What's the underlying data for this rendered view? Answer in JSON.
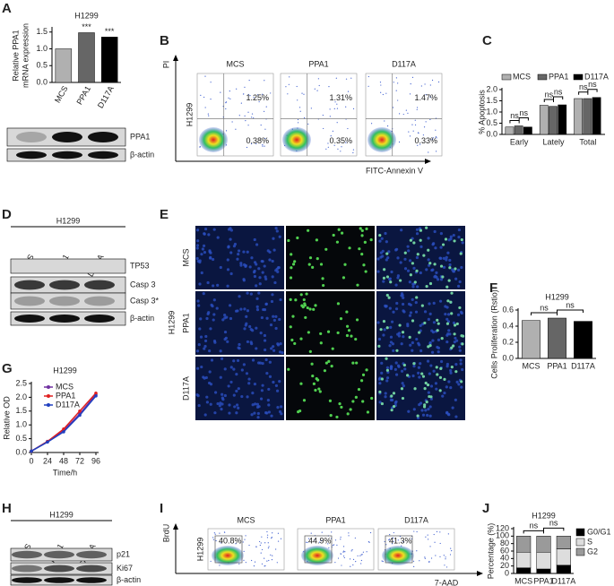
{
  "panel_letters": [
    "A",
    "B",
    "C",
    "D",
    "E",
    "F",
    "G",
    "H",
    "I",
    "J"
  ],
  "chart_data": [
    {
      "type": "bar",
      "title": "H1299",
      "ylabel": [
        "Relative PPA1",
        "mRNA expression"
      ],
      "categories": [
        "MCS",
        "PPA1",
        "D117A"
      ],
      "values": [
        1.0,
        1.48,
        1.35
      ],
      "colors": [
        "#b0b0b0",
        "#666666",
        "#000000"
      ],
      "ylim": [
        0,
        1.6
      ],
      "yticks": [
        {
          "value": 0,
          "label": "0.0"
        },
        {
          "value": 0.5,
          "label": "0.5"
        },
        {
          "value": 1,
          "label": "1.0"
        },
        {
          "value": 1.5,
          "label": "1.5"
        }
      ],
      "annotations": [
        "***",
        "***"
      ]
    },
    {
      "type": "bar",
      "ylabel": "% Apoptosis",
      "categories": [
        "Early",
        "Lately",
        "Total"
      ],
      "series": [
        {
          "name": "MCS",
          "color": "#b0b0b0",
          "values": [
            0.33,
            1.3,
            1.6
          ]
        },
        {
          "name": "PPA1",
          "color": "#666666",
          "values": [
            0.38,
            1.25,
            1.6
          ]
        },
        {
          "name": "D117A",
          "color": "#000000",
          "values": [
            0.33,
            1.32,
            1.65
          ]
        }
      ],
      "ylim": [
        0,
        2
      ],
      "yticks": [
        {
          "value": 0,
          "label": "0.0"
        },
        {
          "value": 0.5,
          "label": "0.5"
        },
        {
          "value": 1,
          "label": "1.0"
        },
        {
          "value": 1.5,
          "label": "1.5"
        },
        {
          "value": 2,
          "label": "2.0"
        }
      ],
      "annotations": [
        "ns",
        "ns",
        "ns",
        "ns",
        "ns",
        "ns"
      ]
    },
    {
      "type": "bar",
      "title": "H1299",
      "ylabel": "Cells Proliferation (Rstio)",
      "categories": [
        "MCS",
        "PPA1",
        "D117A"
      ],
      "values": [
        0.47,
        0.5,
        0.46
      ],
      "colors": [
        "#b0b0b0",
        "#666666",
        "#000000"
      ],
      "ylim": [
        0,
        0.6
      ],
      "yticks": [
        {
          "value": 0,
          "label": "0.0"
        },
        {
          "value": 0.2,
          "label": "0.2"
        },
        {
          "value": 0.4,
          "label": "0.4"
        },
        {
          "value": 0.6,
          "label": "0.6"
        }
      ],
      "annotations": [
        "ns",
        "ns"
      ]
    },
    {
      "type": "line",
      "title": "H1299",
      "ylabel": "Relative OD",
      "xlabel": "Time/h",
      "x": [
        0,
        24,
        48,
        72,
        96
      ],
      "series": [
        {
          "name": "MCS",
          "color": "#7030a0",
          "values": [
            0.05,
            0.4,
            0.8,
            1.4,
            2.1
          ]
        },
        {
          "name": "PPA1",
          "color": "#e02020",
          "values": [
            0.05,
            0.4,
            0.85,
            1.5,
            2.15
          ]
        },
        {
          "name": "D117A",
          "color": "#2040c0",
          "values": [
            0.05,
            0.38,
            0.75,
            1.35,
            2.05
          ]
        }
      ],
      "xlim": [
        0,
        100
      ],
      "xticks": [
        0,
        24,
        48,
        72,
        96
      ],
      "ylim": [
        0,
        2.5
      ],
      "yticks": [
        {
          "value": 0,
          "label": "0.0"
        },
        {
          "value": 0.5,
          "label": "0.5"
        },
        {
          "value": 1,
          "label": "1.0"
        },
        {
          "value": 1.5,
          "label": "1.5"
        },
        {
          "value": 2,
          "label": "2.0"
        },
        {
          "value": 2.5,
          "label": "2.5"
        }
      ]
    },
    {
      "type": "stacked_bar",
      "title": "H1299",
      "ylabel": "Percentage (%)",
      "categories": [
        "MCS",
        "PPA1",
        "D117A"
      ],
      "series": [
        {
          "name": "G0/G1",
          "color": "#000000",
          "values": [
            15,
            12,
            22
          ]
        },
        {
          "name": "S",
          "color": "#dddddd",
          "values": [
            42,
            45,
            44
          ]
        },
        {
          "name": "G2",
          "color": "#9a9a9a",
          "values": [
            43,
            43,
            34
          ]
        }
      ],
      "ylim": [
        0,
        120
      ],
      "yticks": [
        0,
        20,
        40,
        60,
        80,
        100,
        120
      ],
      "annotations": [
        "ns",
        "ns"
      ]
    }
  ],
  "blots": [
    {
      "bands": [
        "PPA1",
        "β-actin"
      ]
    },
    {
      "title": "H1299",
      "lanes": [
        "MCS",
        "PPA1",
        "D117A"
      ],
      "bands": [
        "TP53",
        "Casp 3",
        "Casp 3*",
        "β-actin"
      ]
    },
    {
      "title": "H1299",
      "lanes": [
        "MCS",
        "PPA1",
        "D117A"
      ],
      "bands": [
        "p21",
        "Ki67",
        "β-actin"
      ]
    }
  ],
  "flow_cytometry": [
    {
      "y_label": "PI",
      "x_label": "FITC-Annexin V",
      "row_label": "H1299",
      "plots": [
        {
          "title": "MCS",
          "gates": [
            "1.25%",
            "0.38%"
          ]
        },
        {
          "title": "PPA1",
          "gates": [
            "1.31%",
            "0.35%"
          ]
        },
        {
          "title": "D117A",
          "gates": [
            "1.47%",
            "0.33%"
          ]
        }
      ]
    },
    {
      "y_label": "BrdU",
      "x_label": "7-AAD",
      "row_label": "H1299",
      "plots": [
        {
          "title": "MCS",
          "gates": [
            "40.8%"
          ]
        },
        {
          "title": "PPA1",
          "gates": [
            "44.9%"
          ]
        },
        {
          "title": "D117A",
          "gates": [
            "41.3%"
          ]
        }
      ]
    }
  ],
  "microscopy": {
    "row_group": "H1299",
    "rows": [
      "MCS",
      "PPA1",
      "D117A"
    ]
  }
}
